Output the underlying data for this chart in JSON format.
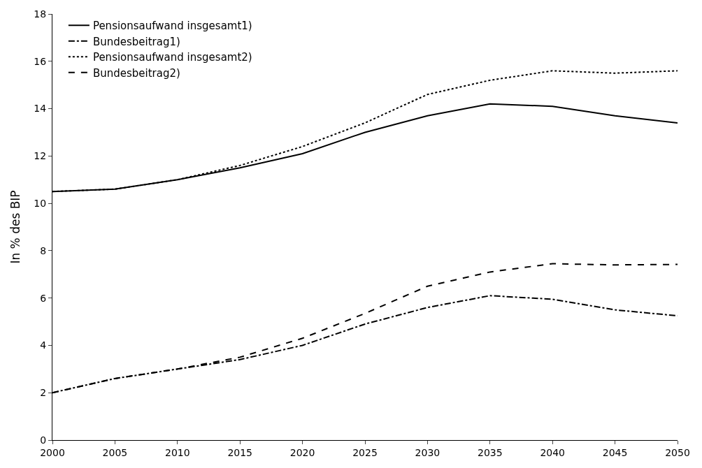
{
  "chart_data": {
    "type": "line",
    "ylabel": "In % des BIP",
    "x": [
      2000,
      2005,
      2010,
      2015,
      2020,
      2025,
      2030,
      2035,
      2040,
      2045,
      2050
    ],
    "xlim": [
      2000,
      2050
    ],
    "xticks": [
      2000,
      2005,
      2010,
      2015,
      2020,
      2025,
      2030,
      2035,
      2040,
      2045,
      2050
    ],
    "ylim": [
      0,
      18
    ],
    "yticks": [
      0,
      2,
      4,
      6,
      8,
      10,
      12,
      14,
      16,
      18
    ],
    "legend": "top left",
    "marker": "none",
    "series": [
      {
        "name": "Pensionsaufwand insgesamt1)",
        "color": "#000000",
        "line_style": "solid",
        "values": [
          10.5,
          10.6,
          11.0,
          11.5,
          12.1,
          13.0,
          13.7,
          14.2,
          14.1,
          13.7,
          13.4
        ]
      },
      {
        "name": "Bundesbeitrag1)",
        "color": "#000000",
        "line_style": "dashdot",
        "values": [
          2.0,
          2.6,
          3.0,
          3.4,
          4.0,
          4.9,
          5.6,
          6.1,
          5.95,
          5.5,
          5.25
        ]
      },
      {
        "name": "Pensionsaufwand insgesamt2)",
        "color": "#000000",
        "line_style": "dotted",
        "values": [
          10.5,
          10.6,
          11.0,
          11.6,
          12.4,
          13.4,
          14.6,
          15.2,
          15.6,
          15.5,
          15.6
        ]
      },
      {
        "name": "Bundesbeitrag2)",
        "color": "#000000",
        "line_style": "dashed",
        "values": [
          2.0,
          2.6,
          3.0,
          3.5,
          4.3,
          5.35,
          6.5,
          7.1,
          7.45,
          7.4,
          7.42
        ]
      }
    ]
  }
}
